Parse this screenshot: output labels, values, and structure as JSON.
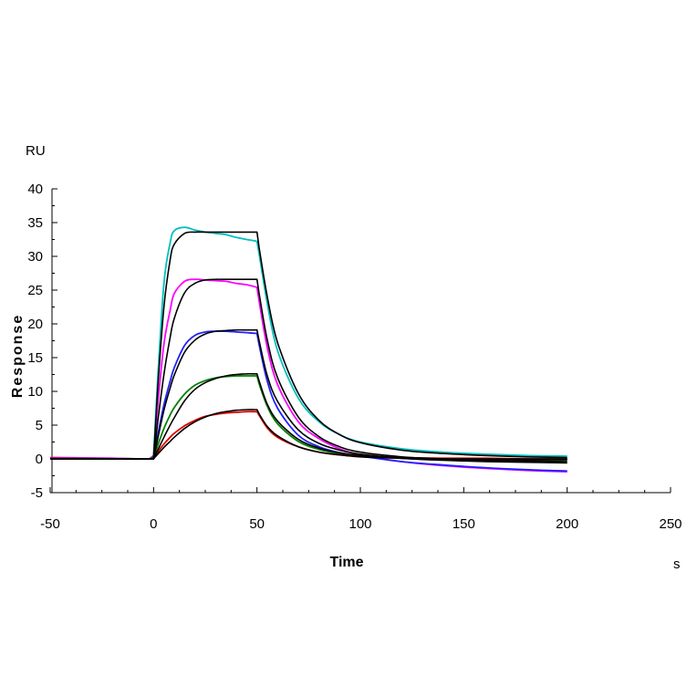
{
  "chart_data": {
    "type": "line",
    "title": "",
    "xlabel": "Time",
    "ylabel": "Response",
    "x_unit": "s",
    "y_unit": "RU",
    "xlim": [
      -50,
      250
    ],
    "ylim": [
      -5,
      40
    ],
    "x_ticks": [
      -50,
      0,
      50,
      100,
      150,
      200,
      250
    ],
    "y_ticks": [
      -5,
      0,
      5,
      10,
      15,
      20,
      25,
      30,
      35,
      40
    ],
    "grid": false,
    "legend": "none",
    "association_end": 50,
    "x": [
      -50,
      -20,
      -2,
      0,
      2,
      5,
      8,
      10,
      15,
      20,
      25,
      30,
      35,
      40,
      45,
      49,
      50,
      51,
      55,
      60,
      70,
      80,
      90,
      100,
      120,
      140,
      160,
      180,
      200
    ],
    "series": [
      {
        "color": "#00c0c0",
        "values": [
          0.2,
          0.1,
          0.0,
          0.5,
          12,
          26,
          32,
          33.8,
          34.3,
          33.9,
          33.6,
          33.4,
          33.2,
          32.8,
          32.5,
          32.3,
          32.2,
          30.5,
          23,
          16,
          9,
          5.5,
          3.6,
          2.5,
          1.5,
          1.0,
          0.7,
          0.5,
          0.4
        ]
      },
      {
        "color": "#ff00ff",
        "values": [
          0.2,
          0.1,
          0.0,
          0.4,
          8,
          17,
          22,
          24.5,
          26.3,
          26.6,
          26.5,
          26.4,
          26.3,
          26.0,
          25.8,
          25.5,
          25.4,
          23.5,
          16.5,
          11,
          5.5,
          3.0,
          1.5,
          0.6,
          -0.4,
          -1.0,
          -1.4,
          -1.7,
          -1.9
        ]
      },
      {
        "color": "#2020ff",
        "values": [
          0.1,
          0.0,
          0.0,
          0.3,
          3.5,
          8,
          11.5,
          13.5,
          16.8,
          18.3,
          18.8,
          18.9,
          18.9,
          18.8,
          18.7,
          18.6,
          18.6,
          17,
          11.5,
          7.5,
          3.5,
          1.8,
          0.9,
          0.4,
          -0.4,
          -0.9,
          -1.3,
          -1.6,
          -1.8
        ]
      },
      {
        "color": "#008000",
        "values": [
          0.1,
          0.0,
          0.0,
          0.2,
          2.0,
          4.5,
          6.5,
          7.6,
          9.6,
          10.9,
          11.6,
          12.0,
          12.2,
          12.3,
          12.3,
          12.3,
          12.3,
          11.2,
          7.8,
          5.2,
          2.6,
          1.4,
          0.8,
          0.5,
          0.1,
          -0.1,
          -0.2,
          -0.2,
          -0.2
        ]
      },
      {
        "color": "#e00000",
        "values": [
          0.1,
          0.0,
          0.0,
          0.1,
          1.0,
          2.2,
          3.2,
          3.8,
          4.9,
          5.7,
          6.3,
          6.6,
          6.8,
          6.9,
          7.0,
          7.0,
          7.0,
          6.5,
          4.6,
          3.2,
          1.8,
          1.0,
          0.6,
          0.4,
          0.2,
          0.1,
          0.1,
          0.0,
          0.0
        ]
      },
      {
        "color": "#000000",
        "values": [
          0,
          0,
          0,
          0,
          10.5,
          22.5,
          29.5,
          31.8,
          33.4,
          33.6,
          33.6,
          33.6,
          33.6,
          33.6,
          33.6,
          33.6,
          33.6,
          31.4,
          24,
          17.2,
          9.7,
          5.7,
          3.6,
          2.4,
          1.3,
          0.8,
          0.5,
          0.3,
          0.2
        ]
      },
      {
        "color": "#000000",
        "values": [
          0,
          0,
          0,
          0,
          5.5,
          12.5,
          18,
          20.8,
          24.6,
          26.0,
          26.5,
          26.6,
          26.6,
          26.6,
          26.6,
          26.6,
          26.6,
          24.6,
          17.6,
          12.0,
          6.2,
          3.3,
          1.8,
          1.0,
          0.3,
          0.0,
          -0.2,
          -0.3,
          -0.4
        ]
      },
      {
        "color": "#000000",
        "values": [
          0,
          0,
          0,
          0,
          3.0,
          7.2,
          10.5,
          12.4,
          15.8,
          17.6,
          18.5,
          18.9,
          19.0,
          19.1,
          19.1,
          19.1,
          19.1,
          17.6,
          12.3,
          8.5,
          4.3,
          2.3,
          1.3,
          0.7,
          0.1,
          -0.2,
          -0.4,
          -0.5,
          -0.6
        ]
      },
      {
        "color": "#000000",
        "values": [
          0,
          0,
          0,
          0,
          1.3,
          3.2,
          5.0,
          6.1,
          8.6,
          10.3,
          11.3,
          11.9,
          12.3,
          12.5,
          12.6,
          12.6,
          12.6,
          11.6,
          8.1,
          5.6,
          2.9,
          1.6,
          0.9,
          0.5,
          0.1,
          0.0,
          -0.1,
          -0.1,
          -0.1
        ]
      },
      {
        "color": "#000000",
        "values": [
          0,
          0,
          0,
          0,
          0.7,
          1.7,
          2.6,
          3.2,
          4.5,
          5.5,
          6.2,
          6.7,
          7.0,
          7.2,
          7.3,
          7.3,
          7.3,
          6.7,
          4.8,
          3.4,
          1.8,
          1.0,
          0.6,
          0.3,
          0.1,
          0.0,
          0.0,
          0.0,
          0.0
        ]
      }
    ]
  }
}
